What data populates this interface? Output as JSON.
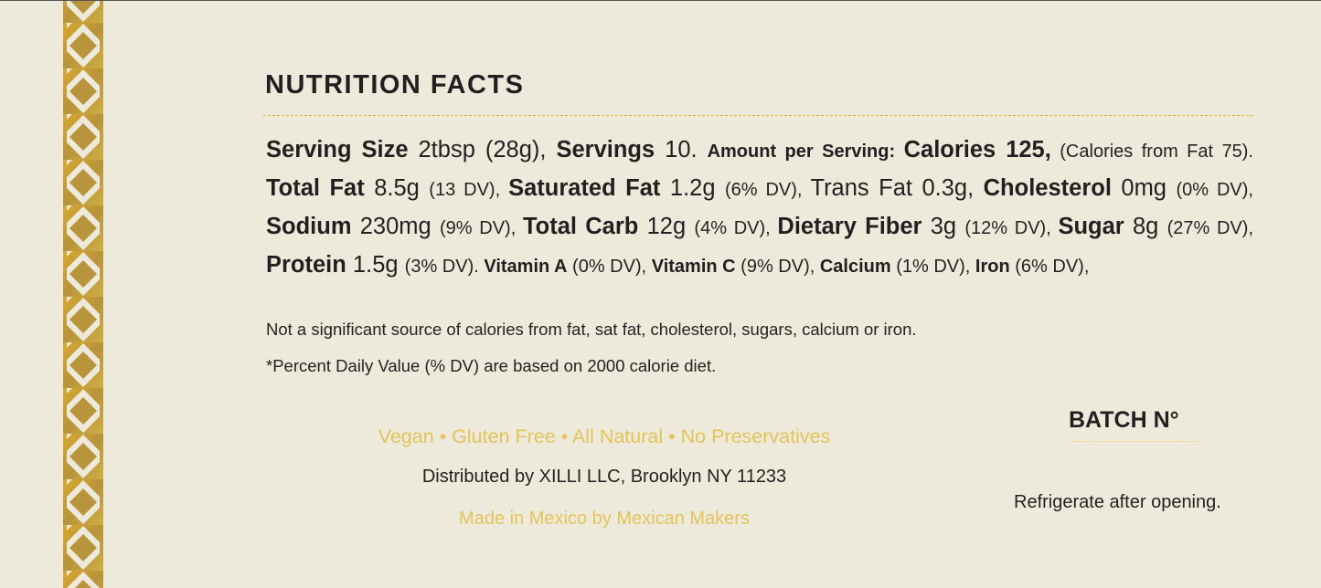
{
  "colors": {
    "background": "#eeeadb",
    "gold": "#c9a23a",
    "text": "#231f20",
    "gold_text": "#e3c45a"
  },
  "title": "NUTRITION FACTS",
  "facts": [
    {
      "t": "Serving Size",
      "s": "b"
    },
    {
      "t": " 2tbsp (28g),  ",
      "s": "r"
    },
    {
      "t": "Servings",
      "s": "b"
    },
    {
      "t": " 10. ",
      "s": "r"
    },
    {
      "t": "Amount per Serving: ",
      "s": "sb"
    },
    {
      "t": "Calories 125,",
      "s": "b"
    },
    {
      "t": " (Calories from Fat 75). ",
      "s": "s"
    },
    {
      "t": "Total Fat",
      "s": "b"
    },
    {
      "t": " 8.5g ",
      "s": "r"
    },
    {
      "t": "(13 DV), ",
      "s": "s"
    },
    {
      "t": "Saturated Fat",
      "s": "b"
    },
    {
      "t": " 1.2g ",
      "s": "r"
    },
    {
      "t": "(6% DV), ",
      "s": "s"
    },
    {
      "t": "Trans Fat 0.3g, ",
      "s": "r"
    },
    {
      "t": "Cholesterol",
      "s": "b"
    },
    {
      "t": " 0mg ",
      "s": "r"
    },
    {
      "t": "(0% DV), ",
      "s": "s"
    },
    {
      "t": "Sodium",
      "s": "b"
    },
    {
      "t": " 230mg ",
      "s": "r"
    },
    {
      "t": "(9% DV), ",
      "s": "s"
    },
    {
      "t": "Total Carb",
      "s": "b"
    },
    {
      "t": " 12g ",
      "s": "r"
    },
    {
      "t": "(4% DV), ",
      "s": "s"
    },
    {
      "t": "Dietary Fiber",
      "s": "b"
    },
    {
      "t": " 3g ",
      "s": "r"
    },
    {
      "t": "(12% DV), ",
      "s": "s"
    },
    {
      "t": "Sugar",
      "s": "b"
    },
    {
      "t": " 8g ",
      "s": "r"
    },
    {
      "t": "(27% DV), ",
      "s": "s"
    },
    {
      "t": "Protein",
      "s": "b"
    },
    {
      "t": " 1.5g ",
      "s": "r"
    },
    {
      "t": "(3% DV). ",
      "s": "s"
    },
    {
      "t": "Vitamin A",
      "s": "sb"
    },
    {
      "t": " (0% DV), ",
      "s": "s"
    },
    {
      "t": "Vitamin C",
      "s": "sb"
    },
    {
      "t": " (9% DV),   ",
      "s": "s"
    },
    {
      "t": "Calcium",
      "s": "sb"
    },
    {
      "t": " (1% DV),   ",
      "s": "s"
    },
    {
      "t": "Iron",
      "s": "sb"
    },
    {
      "t": "  (6% DV),",
      "s": "s"
    }
  ],
  "note1": "Not a significant source of calories from fat, sat fat, cholesterol, sugars, calcium or iron.",
  "note2": "*Percent Daily Value (% DV) are based on 2000 calorie diet.",
  "claims": "Vegan • Gluten Free • All Natural • No Preservatives",
  "distributor": "Distributed by XILLI LLC, Brooklyn NY 11233",
  "origin": "Made in Mexico by Mexican Makers",
  "batch": "BATCH N°",
  "storage": "Refrigerate after opening."
}
